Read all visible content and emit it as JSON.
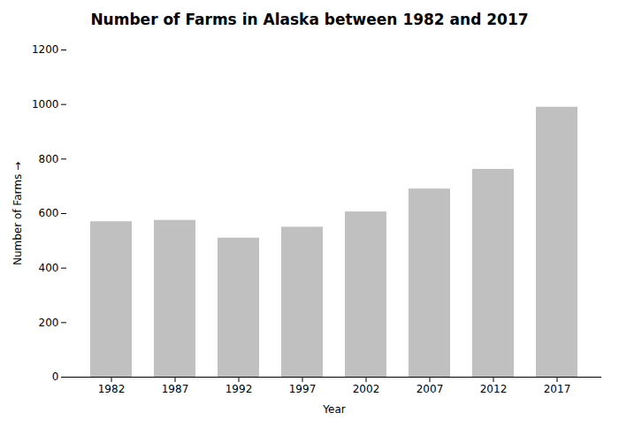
{
  "chart_data": {
    "type": "bar",
    "title": "Number of Farms in Alaska between 1982 and 2017",
    "xlabel": "Year",
    "ylabel": "Number of Farms",
    "categories": [
      "1982",
      "1987",
      "1992",
      "1997",
      "2002",
      "2007",
      "2012",
      "2017"
    ],
    "values": [
      570,
      575,
      510,
      550,
      606,
      690,
      762,
      990
    ],
    "color": "#c0c0c0",
    "ylim": [
      0,
      1200
    ],
    "yticks": [
      0,
      200,
      400,
      600,
      800,
      1000,
      1200
    ],
    "grid": false
  }
}
